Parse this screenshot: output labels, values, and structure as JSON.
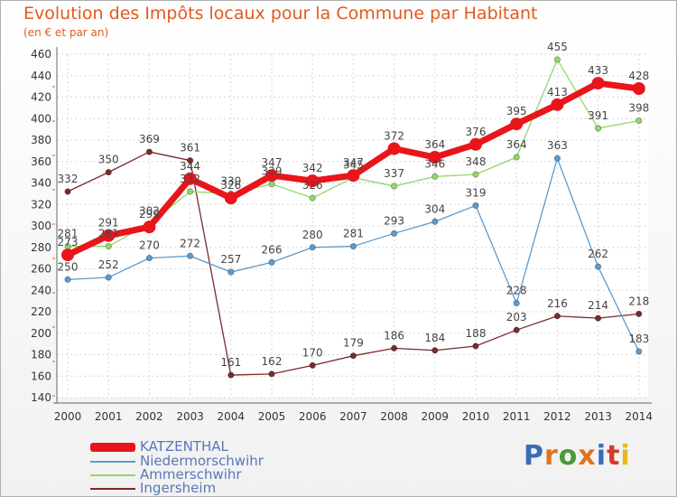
{
  "title": "Evolution des Impôts locaux pour la Commune par Habitant",
  "subtitle": "(en € et par an)",
  "logo": {
    "letters": [
      "P",
      "r",
      "o",
      "x",
      "i",
      "t",
      "i"
    ],
    "colors": [
      "#3b6db5",
      "#e0731c",
      "#4a9a36",
      "#e0731c",
      "#3b6db5",
      "#d63a2c",
      "#e8b81a"
    ]
  },
  "chart_data": {
    "type": "line",
    "title": "Evolution des Impôts locaux pour la Commune par Habitant",
    "ylabel": "(en € et par an)",
    "x": [
      "2000",
      "2001",
      "2002",
      "2003",
      "2004",
      "2005",
      "2006",
      "2007",
      "2008",
      "2009",
      "2010",
      "2011",
      "2012",
      "2013",
      "2014"
    ],
    "yticks": [
      "140",
      "160",
      "180",
      "200",
      "220",
      "240",
      "260",
      "280",
      "300",
      "320",
      "340",
      "360",
      "380",
      "400",
      "420",
      "440",
      "460"
    ],
    "ylim": [
      140,
      460
    ],
    "grid": true,
    "legend_position": "bottom-left",
    "series": [
      {
        "name": "KATZENTHAL",
        "color": "#e8151b",
        "values": [
          273,
          291,
          299,
          344,
          326,
          347,
          342,
          347,
          372,
          364,
          376,
          395,
          413,
          433,
          428
        ],
        "labels": [
          "273",
          "291",
          "299",
          "344",
          "326",
          "347",
          "342",
          "347",
          "372",
          "364",
          "376",
          "395",
          "413",
          "433",
          "428"
        ]
      },
      {
        "name": "Niedermorschwihr",
        "color": "#5a9bd0",
        "values": [
          250,
          252,
          270,
          272,
          257,
          266,
          280,
          281,
          293,
          304,
          319,
          228,
          363,
          262,
          183
        ],
        "labels": [
          "250",
          "252",
          "270",
          "272",
          "257",
          "266",
          "280",
          "281",
          "293",
          "304",
          "319",
          "228",
          "363",
          "262",
          "183"
        ]
      },
      {
        "name": "Ammerschwihr",
        "color": "#93d66a",
        "values": [
          281,
          281,
          302,
          332,
          330,
          339,
          326,
          345,
          337,
          346,
          348,
          364,
          455,
          391,
          398
        ],
        "labels": [
          "281",
          "281",
          "302",
          "332",
          "330",
          "339",
          "326",
          "345",
          "337",
          "346",
          "348",
          "364",
          "455",
          "391",
          "398"
        ]
      },
      {
        "name": "Ingersheim",
        "color": "#7a2a2e",
        "values": [
          332,
          350,
          369,
          361,
          161,
          162,
          170,
          179,
          186,
          184,
          188,
          203,
          216,
          214,
          218
        ],
        "labels": [
          "332",
          "350",
          "369",
          "361",
          "161",
          "162",
          "170",
          "179",
          "186",
          "184",
          "188",
          "203",
          "216",
          "214",
          "218"
        ]
      }
    ]
  }
}
